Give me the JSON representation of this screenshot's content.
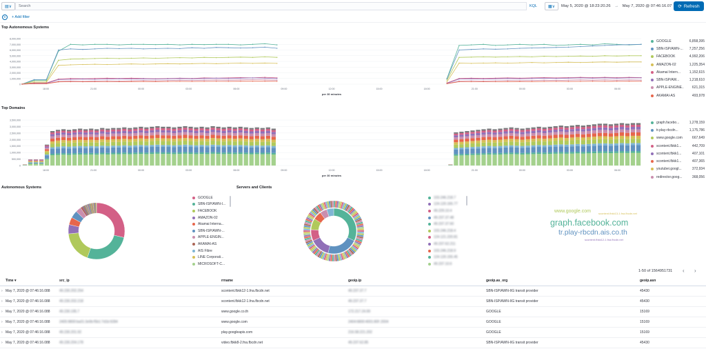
{
  "query_bar": {
    "search_placeholder": "Search",
    "language": "KQL",
    "date_from": "May 5, 2020 @ 18:23:20.26",
    "date_arrow": "→",
    "date_to": "May 7, 2020 @ 07:46:16.07",
    "refresh_label": "Refresh",
    "add_filter": "+ Add filter"
  },
  "panels": {
    "top_as_title": "Top Autonomous Systems",
    "top_domains_title": "Top Domains",
    "as_pie_title": "Autonomous Systems",
    "servers_clients_title": "Servers and Clients"
  },
  "colors": {
    "green": "#54b399",
    "blue": "#6092c0",
    "lime": "#b0c95b",
    "olive": "#d6bf57",
    "red": "#d36086",
    "purple": "#9170b8",
    "pink": "#ca8eae",
    "orange": "#e7664c",
    "tan": "#aa6556",
    "mint": "#a4d18d",
    "teal": "#7fb5d4",
    "grey": "#76777a"
  },
  "chart_data": [
    {
      "type": "line",
      "panel": "top_autonomous_systems",
      "title": "Top Autonomous Systems",
      "xlabel": "per 30 minutes",
      "x_ticks": [
        "18:00",
        "21:00",
        "00:00",
        "03:00",
        "06:00",
        "09:00",
        "12:00",
        "15:00",
        "18:00",
        "21:00",
        "00:00",
        "03:00",
        "06:00"
      ],
      "y_ticks": [
        "0",
        "1,000,000",
        "2,000,000",
        "3,000,000",
        "4,000,000",
        "5,000,000",
        "6,000,000",
        "7,000,000",
        "8,000,000"
      ],
      "ylim": [
        0,
        8000000
      ],
      "series": [
        {
          "name": "GOOGLE",
          "total": "6,858,395",
          "color": "#54b399",
          "values": [
            0,
            700000,
            700000,
            5800000,
            7000000,
            6900000,
            7000000,
            7000000,
            6900000,
            7000000,
            7000000,
            6950000,
            7000000,
            6900000,
            7000000,
            6950000,
            7000000,
            7000000,
            6900000,
            7000000,
            7100000,
            6900000,
            null,
            null,
            null,
            null,
            null,
            null,
            null,
            null,
            null,
            null,
            null,
            null,
            null,
            1000000,
            6800000,
            6900000,
            7000000,
            6800000,
            6900000,
            7000000,
            6900000,
            7000000,
            6800000,
            6900000,
            7000000,
            6900000,
            7100000,
            7000000,
            6900000,
            7000000
          ]
        },
        {
          "name": "SBN-ISP/AWN-...",
          "total": "7,257,256",
          "color": "#6092c0",
          "values": [
            0,
            800000,
            800000,
            6000000,
            6200000,
            6100000,
            6200000,
            6300000,
            6250000,
            6300000,
            6200000,
            6250000,
            6300000,
            6250000,
            6400000,
            6300000,
            6450000,
            6400000,
            6350000,
            6400000,
            6500000,
            6300000,
            null,
            null,
            null,
            null,
            null,
            null,
            null,
            null,
            null,
            null,
            null,
            null,
            null,
            900000,
            6000000,
            6100000,
            6200000,
            6150000,
            6200000,
            6300000,
            6350000,
            6400000,
            6450000,
            6500000,
            6600000,
            6700000,
            6800000,
            6900000,
            6950000,
            7000000
          ]
        },
        {
          "name": "FACEBOOK",
          "total": "4,992,206",
          "color": "#b0c95b",
          "values": [
            0,
            500000,
            500000,
            4200000,
            4400000,
            4450000,
            4500000,
            4550000,
            4500000,
            4550000,
            4600000,
            4550000,
            4600000,
            4650000,
            4600000,
            4700000,
            4650000,
            4700000,
            4750000,
            4700000,
            4800000,
            4700000,
            null,
            null,
            null,
            null,
            null,
            null,
            null,
            null,
            null,
            null,
            null,
            null,
            null,
            700000,
            4700000,
            4750000,
            4800000,
            4750000,
            4800000,
            4850000,
            4800000,
            4900000,
            4850000,
            4900000,
            4950000,
            4900000,
            5000000,
            4950000,
            5000000,
            5000000
          ]
        },
        {
          "name": "AMAZON-02",
          "total": "1,225,354",
          "color": "#d6bf57",
          "values": [
            0,
            300000,
            300000,
            3300000,
            3400000,
            3450000,
            3500000,
            3450000,
            3500000,
            3550000,
            3500000,
            3550000,
            3600000,
            3550000,
            3600000,
            3650000,
            3600000,
            3650000,
            3700000,
            3650000,
            3700000,
            3650000,
            null,
            null,
            null,
            null,
            null,
            null,
            null,
            null,
            null,
            null,
            null,
            null,
            null,
            400000,
            3700000,
            3650000,
            3700000,
            3750000,
            3700000,
            3750000,
            3800000,
            3750000,
            3800000,
            3850000,
            3800000,
            3850000,
            3900000,
            3850000,
            3900000,
            3900000
          ]
        },
        {
          "name": "Akamai Intern...",
          "total": "1,152,615",
          "color": "#d36086",
          "values": [
            0,
            200000,
            200000,
            900000,
            1000000,
            950000,
            1000000,
            1050000,
            1000000,
            1050000,
            1000000,
            950000,
            1000000,
            1050000,
            1000000,
            1100000,
            1050000,
            1100000,
            1150000,
            1100000,
            1200000,
            1100000,
            null,
            null,
            null,
            null,
            null,
            null,
            null,
            null,
            null,
            null,
            null,
            null,
            null,
            200000,
            1000000,
            1050000,
            1000000,
            1050000,
            1100000,
            1050000,
            1100000,
            1150000,
            1100000,
            1150000,
            1200000,
            1150000,
            1200000,
            1150000,
            1200000,
            1150000
          ]
        },
        {
          "name": "SBN-ISP/AW...",
          "total": "1,218,610",
          "color": "#9170b8",
          "values": [
            0,
            150000,
            150000,
            800000,
            850000,
            900000,
            850000,
            900000,
            950000,
            900000,
            950000,
            900000,
            950000,
            1000000,
            950000,
            1000000,
            1050000,
            1000000,
            1050000,
            1100000,
            1050000,
            1000000,
            null,
            null,
            null,
            null,
            null,
            null,
            null,
            null,
            null,
            null,
            null,
            null,
            null,
            150000,
            900000,
            950000,
            900000,
            950000,
            1000000,
            950000,
            1000000,
            1050000,
            1000000,
            1050000,
            1100000,
            1050000,
            1100000,
            1050000,
            1100000,
            1100000
          ]
        },
        {
          "name": "APPLE-ENGINE...",
          "total": "621,315",
          "color": "#ca8eae",
          "values": [
            0,
            100000,
            100000,
            500000,
            550000,
            500000,
            550000,
            600000,
            550000,
            600000,
            650000,
            600000,
            650000,
            700000,
            650000,
            700000,
            750000,
            700000,
            750000,
            800000,
            750000,
            700000,
            null,
            null,
            null,
            null,
            null,
            null,
            null,
            null,
            null,
            null,
            null,
            null,
            null,
            100000,
            550000,
            600000,
            550000,
            600000,
            650000,
            600000,
            650000,
            700000,
            650000,
            700000,
            750000,
            700000,
            750000,
            700000,
            750000,
            700000
          ]
        },
        {
          "name": "AKAMAI-AS",
          "total": "493,978",
          "color": "#e7664c",
          "values": [
            0,
            80000,
            80000,
            400000,
            420000,
            410000,
            430000,
            440000,
            430000,
            450000,
            460000,
            450000,
            470000,
            480000,
            470000,
            490000,
            500000,
            490000,
            510000,
            520000,
            510000,
            500000,
            null,
            null,
            null,
            null,
            null,
            null,
            null,
            null,
            null,
            null,
            null,
            null,
            null,
            80000,
            420000,
            430000,
            440000,
            430000,
            450000,
            460000,
            450000,
            470000,
            480000,
            470000,
            490000,
            500000,
            490000,
            500000,
            510000,
            500000
          ]
        }
      ]
    },
    {
      "type": "bar",
      "panel": "top_domains",
      "title": "Top Domains",
      "xlabel": "per 30 minutes",
      "stacked": true,
      "x_ticks": [
        "18:00",
        "21:00",
        "00:00",
        "03:00",
        "06:00",
        "09:00",
        "12:00",
        "15:00",
        "18:00",
        "21:00",
        "00:00",
        "03:00",
        "06:00"
      ],
      "y_ticks": [
        "0",
        "500,000",
        "1,000,000",
        "1,500,000",
        "2,000,000",
        "2,500,000",
        "3,000,000",
        "3,500,000"
      ],
      "ylim": [
        0,
        3700000
      ],
      "totals": [
        100000,
        500000,
        500000,
        500000,
        1700000,
        2800000,
        2900000,
        2950000,
        2900000,
        2950000,
        3000000,
        2950000,
        3000000,
        2950000,
        3050000,
        3000000,
        3050000,
        3050000,
        3100000,
        3050000,
        3100000,
        3150000,
        3100000,
        3150000,
        3200000,
        3150000,
        3150000,
        3100000,
        3150000,
        3200000,
        3150000,
        3100000,
        3150000,
        3100000,
        3200000,
        3150000,
        3100000,
        3150000,
        3100000,
        3150000,
        3100000,
        3050000,
        3100000,
        3050000,
        3100000,
        3000000,
        null,
        null,
        null,
        null,
        null,
        null,
        null,
        null,
        null,
        null,
        null,
        null,
        null,
        null,
        null,
        null,
        null,
        null,
        null,
        null,
        null,
        null,
        null,
        null,
        null,
        null,
        null,
        null,
        null,
        null,
        null,
        100000,
        2700000,
        2750000,
        2800000,
        2850000,
        2900000,
        2950000,
        3000000,
        2950000,
        3000000,
        3050000,
        3100000,
        3050000,
        3000000,
        3050000,
        3100000,
        3150000,
        3100000,
        3150000,
        3200000,
        3250000,
        3200000,
        3250000,
        3300000,
        3250000,
        3300000,
        3350000,
        3400000,
        3400000,
        3350000,
        3400000,
        3450000,
        3400000,
        3450000,
        3450000
      ],
      "series": [
        {
          "name": "graph.facebo...",
          "total": "1,278,159",
          "color": "#54b399"
        },
        {
          "name": "tr.play-rbcdn...",
          "total": "1,175,786",
          "color": "#6092c0"
        },
        {
          "name": "www.google.com",
          "total": "667,649",
          "color": "#b0c95b"
        },
        {
          "name": "scontent.fbkk1...",
          "total": "442,709",
          "color": "#d36086"
        },
        {
          "name": "scontent.fbkk1...",
          "total": "407,101",
          "color": "#9170b8"
        },
        {
          "name": "scontent.fbkk1...",
          "total": "407,365",
          "color": "#e7664c"
        },
        {
          "name": "youtubei.googl...",
          "total": "372,934",
          "color": "#d6bf57"
        },
        {
          "name": "redirector.goog...",
          "total": "368,056",
          "color": "#ca8eae"
        }
      ]
    },
    {
      "type": "pie",
      "panel": "autonomous_systems",
      "title": "Autonomous Systems",
      "labels": [
        "GOOGLE",
        "SBN-ISP/AWN-I...",
        "FACEBOOK",
        "AMAZON-02",
        "Akamai Interna...",
        "SBN-ISP/AWN-...",
        "APPLE-ENGIN...",
        "AKAMAI-AS",
        "AIS Fibre",
        "LINE Corporati...",
        "MICROSOFT-C..."
      ],
      "colors": [
        "#d36086",
        "#54b399",
        "#b0c95b",
        "#9170b8",
        "#e7664c",
        "#6092c0",
        "#ca8eae",
        "#aa6556",
        "#7fb5d4",
        "#d6bf57",
        "#a4d18d"
      ],
      "values": [
        27,
        25,
        17,
        5,
        4,
        4,
        3,
        3,
        2,
        2,
        2
      ]
    },
    {
      "type": "pie",
      "panel": "servers_and_clients",
      "title": "Servers and Clients",
      "legend_entries": [
        "103.246.218.7",
        "124.120.165.77",
        "49.229.10.4",
        "49.237.37.48",
        "49.237.37.60",
        "103.246.218.4",
        "124.121.220.81",
        "49.237.62.211",
        "103.246.218.9",
        "124.120.155.45",
        "49.237.10.6"
      ],
      "colors": [
        "#54b399",
        "#9170b8",
        "#d36086",
        "#6092c0",
        "#54b399",
        "#b0c95b",
        "#d36086",
        "#9170b8",
        "#e7664c",
        "#54b399",
        "#a4d18d"
      ]
    }
  ],
  "tag_cloud": {
    "words": [
      {
        "text": "www.google.com",
        "color": "#b0c95b",
        "size": "small"
      },
      {
        "text": "scontent.fbkk13-1.fna.fbcdn.net",
        "color": "#d6bf57",
        "size": "tiny"
      },
      {
        "text": "graph.facebook.com",
        "color": "#54b399",
        "size": "large"
      },
      {
        "text": "tr.play-rbcdn.ais.co.th",
        "color": "#6092c0",
        "size": "large"
      },
      {
        "text": "scontent.fbkk12-1.fna.fbcdn.net",
        "color": "#9170b8",
        "size": "tiny"
      }
    ]
  },
  "table": {
    "pagination": "1-50 of 1564951731",
    "columns": [
      "Time",
      "src_ip",
      "rrname",
      "geoip.ip",
      "geoip.as_org",
      "geoip.asn"
    ],
    "rows": [
      {
        "time": "May 7, 2020 @ 07:46:16.088",
        "src_ip": "49.230.202.254",
        "rrname": "scontent.fbkk12-1.fna.fbcdn.net",
        "geoip_ip": "49.237.37.7",
        "as_org": "SBN-ISP/AWN-IIG transit provider",
        "asn": "45430"
      },
      {
        "time": "May 7, 2020 @ 07:46:16.088",
        "src_ip": "49.230.202.218",
        "rrname": "scontent.fbkk12-1.fna.fbcdn.net",
        "geoip_ip": "49.237.37.7",
        "as_org": "SBN-ISP/AWN-IIG transit provider",
        "asn": "45430"
      },
      {
        "time": "May 7, 2020 @ 07:46:16.088",
        "src_ip": "49.230.195.7",
        "rrname": "www.google.co.th",
        "geoip_ip": "172.217.24.99",
        "as_org": "GOOGLE",
        "asn": "15169"
      },
      {
        "time": "May 7, 2020 @ 07:46:16.088",
        "src_ip": "2405:9800:ba01:3e0b:f5b1:7d1b:9284",
        "rrname": "www.google.com",
        "geoip_ip": "2404:6800:4001:80f::2004",
        "as_org": "GOOGLE",
        "asn": "15169"
      },
      {
        "time": "May 7, 2020 @ 07:46:16.088",
        "src_ip": "49.230.201.92",
        "rrname": "play.googleapis.com",
        "geoip_ip": "216.58.221.202",
        "as_org": "GOOGLE",
        "asn": "15169"
      },
      {
        "time": "May 7, 2020 @ 07:46:16.088",
        "src_ip": "49.230.204.178",
        "rrname": "video.fbkk8-2.fna.fbcdn.net",
        "geoip_ip": "49.237.62.85",
        "as_org": "SBN-ISP/AWN-IIG transit provider",
        "asn": "45430"
      }
    ]
  }
}
